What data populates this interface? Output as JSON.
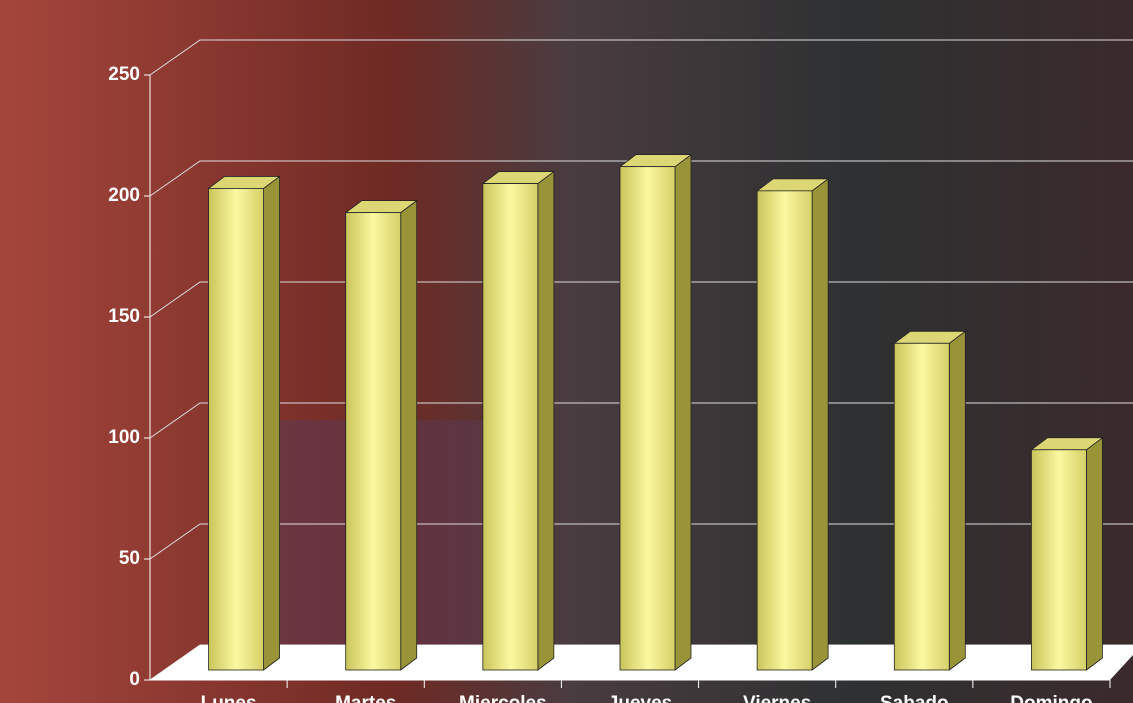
{
  "chart_data": {
    "type": "bar3d",
    "categories": [
      "Lunes",
      "Martes",
      "Miercoles",
      "Jueves",
      "Viernes",
      "Sabado",
      "Domingo"
    ],
    "values": [
      199,
      189,
      201,
      208,
      198,
      135,
      91
    ],
    "color": "#f2ee8c",
    "ylim": [
      0,
      250
    ],
    "yticks": [
      0,
      50,
      100,
      150,
      200,
      250
    ],
    "grid": true
  }
}
